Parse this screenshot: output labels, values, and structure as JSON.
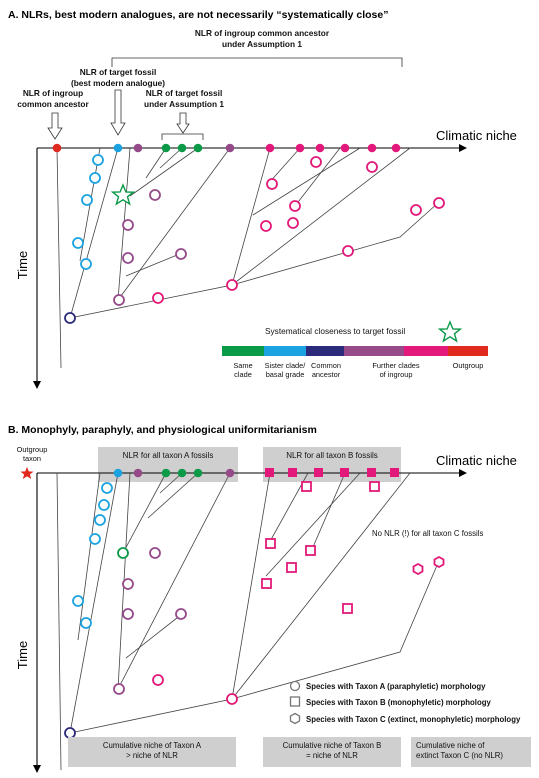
{
  "panel_a": {
    "title": "A. NLRs, best modern analogues, are not necessarily “systematically close”",
    "axis_x": "Climatic niche",
    "axis_y": "Time",
    "label_ingroup_ancestor_assumption": [
      "NLR of ingroup  common ancestor",
      "under Assumption 1"
    ],
    "label_best_analogue": [
      "NLR of target fossil",
      "(best modern analogue)"
    ],
    "label_ingroup_ancestor": [
      "NLR of ingroup",
      "common ancestor"
    ],
    "label_target_assumption": [
      "NLR of target fossil",
      "under Assumption 1"
    ],
    "closeness_title": "Systematical closeness to target fossil",
    "closeness_scale": [
      {
        "color": "#0a9a48",
        "label": [
          "Same",
          "clade"
        ]
      },
      {
        "color": "#1aa3e0",
        "label": [
          "Sister  clade/",
          "basal grade"
        ]
      },
      {
        "color": "#2c2a7a",
        "label": [
          "Common",
          "ancestor"
        ]
      },
      {
        "color": "#964a8a",
        "label": [
          "Further clades",
          "of ingroup"
        ]
      },
      {
        "color": "#e2197a",
        "label": [
          ""
        ]
      },
      {
        "color": "#e02a20",
        "label": [
          "Outgroup"
        ]
      }
    ]
  },
  "panel_b": {
    "title": "B. Monophyly, paraphyly, and physiological uniformitarianism",
    "axis_x": "Climatic niche",
    "axis_y": "Time",
    "outgroup_label": [
      "Outgroup",
      "taxon"
    ],
    "nlr_a_label": "NLR for all taxon A fossils",
    "nlr_b_label": "NLR for all taxon B fossils",
    "no_nlr_label": "No NLR (!) for all taxon C fossils",
    "legend": [
      {
        "shape": "circle",
        "label": "Species with Taxon A (paraphyletic) morphology"
      },
      {
        "shape": "square",
        "label": "Species with Taxon B (monophyletic) morphology"
      },
      {
        "shape": "hexagon",
        "label": "Species with  Taxon C (extinct, monophyletic) morphology"
      }
    ],
    "niche_a": [
      "Cumulative niche of Taxon A",
      "> niche of NLR"
    ],
    "niche_b": [
      "Cumulative niche of Taxon B",
      "= niche of NLR"
    ],
    "niche_c": [
      "Cumulative niche of",
      "extinct Taxon C (no NLR)"
    ]
  },
  "colors": {
    "green": "#0a9a48",
    "blue": "#1aa3e0",
    "navy": "#2c2a7a",
    "purple": "#964a8a",
    "magenta": "#e2197a",
    "red": "#e02a20",
    "gray_box": "#cfcfcf"
  }
}
